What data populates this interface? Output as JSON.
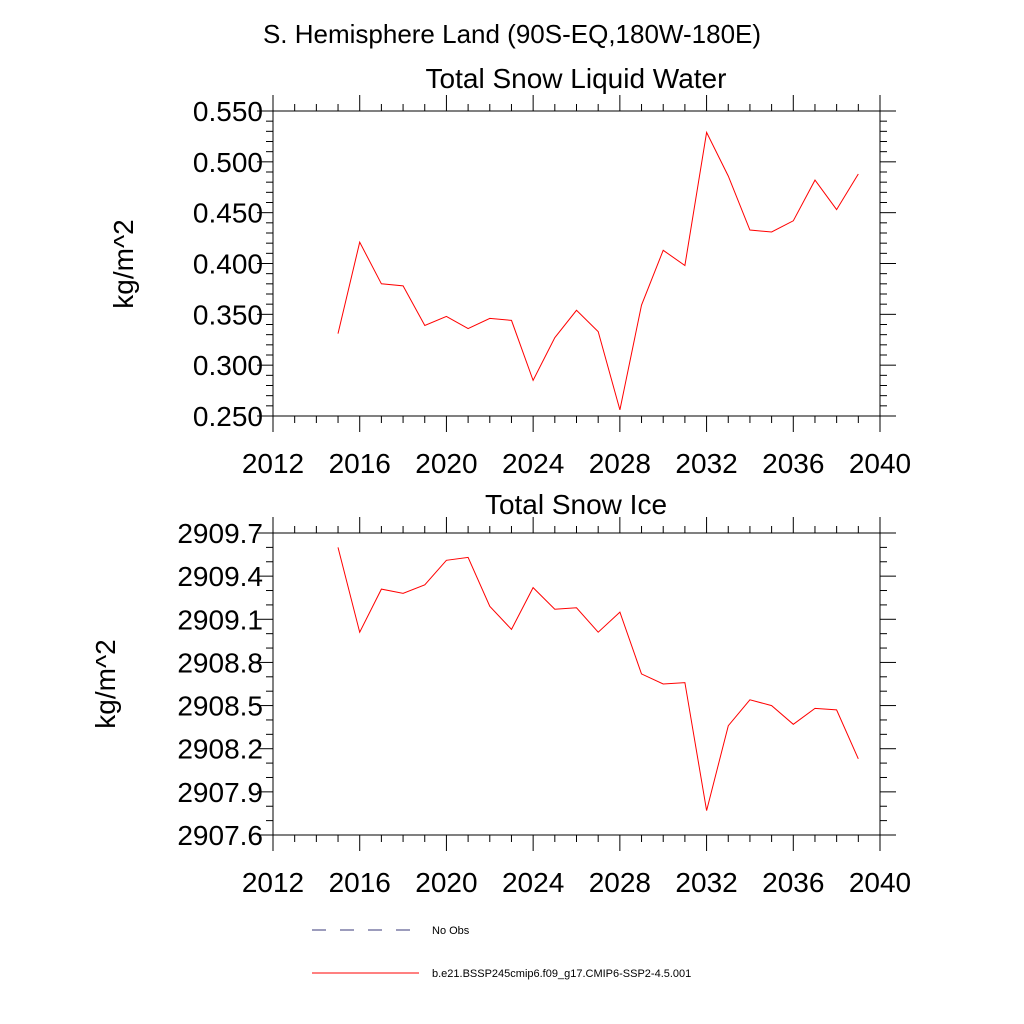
{
  "suptitle": "S. Hemisphere Land (90S-EQ,180W-180E)",
  "chart_data": [
    {
      "type": "line",
      "title": "Total Snow Liquid Water",
      "ylabel": "kg/m^2",
      "xlabel": "",
      "xlim": [
        2012,
        2040
      ],
      "xticks": [
        2012,
        2016,
        2020,
        2024,
        2028,
        2032,
        2036,
        2040
      ],
      "xtick_labels": [
        "2012",
        "2016",
        "2020",
        "2024",
        "2028",
        "2032",
        "2036",
        "2040"
      ],
      "ylim": [
        0.25,
        0.55
      ],
      "yticks": [
        0.25,
        0.3,
        0.35,
        0.4,
        0.45,
        0.5,
        0.55
      ],
      "ytick_labels": [
        "0.250",
        "0.300",
        "0.350",
        "0.400",
        "0.450",
        "0.500",
        "0.550"
      ],
      "grid": false,
      "x": [
        2015,
        2016,
        2017,
        2018,
        2019,
        2020,
        2021,
        2022,
        2023,
        2024,
        2025,
        2026,
        2027,
        2028,
        2029,
        2030,
        2031,
        2032,
        2033,
        2034,
        2035,
        2036,
        2037,
        2038,
        2039
      ],
      "series": [
        {
          "name": "b.e21.BSSP245cmip6.f09_g17.CMIP6-SSP2-4.5.001",
          "color": "#ff0000",
          "values": [
            0.331,
            0.421,
            0.38,
            0.378,
            0.339,
            0.348,
            0.336,
            0.346,
            0.344,
            0.285,
            0.327,
            0.354,
            0.333,
            0.256,
            0.359,
            0.413,
            0.398,
            0.529,
            0.486,
            0.433,
            0.431,
            0.442,
            0.482,
            0.453,
            0.488
          ]
        }
      ]
    },
    {
      "type": "line",
      "title": "Total Snow Ice",
      "ylabel": "kg/m^2",
      "xlabel": "",
      "xlim": [
        2012,
        2040
      ],
      "xticks": [
        2012,
        2016,
        2020,
        2024,
        2028,
        2032,
        2036,
        2040
      ],
      "xtick_labels": [
        "2012",
        "2016",
        "2020",
        "2024",
        "2028",
        "2032",
        "2036",
        "2040"
      ],
      "ylim": [
        2907.6,
        2909.7
      ],
      "yticks": [
        2907.6,
        2907.9,
        2908.2,
        2908.5,
        2908.8,
        2909.1,
        2909.4,
        2909.7
      ],
      "ytick_labels": [
        "2907.6",
        "2907.9",
        "2908.2",
        "2908.5",
        "2908.8",
        "2909.1",
        "2909.4",
        "2909.7"
      ],
      "grid": false,
      "x": [
        2015,
        2016,
        2017,
        2018,
        2019,
        2020,
        2021,
        2022,
        2023,
        2024,
        2025,
        2026,
        2027,
        2028,
        2029,
        2030,
        2031,
        2032,
        2033,
        2034,
        2035,
        2036,
        2037,
        2038,
        2039
      ],
      "series": [
        {
          "name": "b.e21.BSSP245cmip6.f09_g17.CMIP6-SSP2-4.5.001",
          "color": "#ff0000",
          "values": [
            2909.6,
            2909.01,
            2909.31,
            2909.28,
            2909.34,
            2909.51,
            2909.53,
            2909.19,
            2909.03,
            2909.32,
            2909.17,
            2909.18,
            2909.01,
            2909.15,
            2908.72,
            2908.65,
            2908.66,
            2907.77,
            2908.36,
            2908.54,
            2908.5,
            2908.37,
            2908.48,
            2908.47,
            2908.13
          ]
        }
      ]
    }
  ],
  "legend": {
    "placement": "bottom",
    "entries": [
      {
        "label": "No Obs",
        "color": "#3a3a7a",
        "style": "dashed"
      },
      {
        "label": "b.e21.BSSP245cmip6.f09_g17.CMIP6-SSP2-4.5.001",
        "color": "#ff0000",
        "style": "solid"
      }
    ]
  }
}
